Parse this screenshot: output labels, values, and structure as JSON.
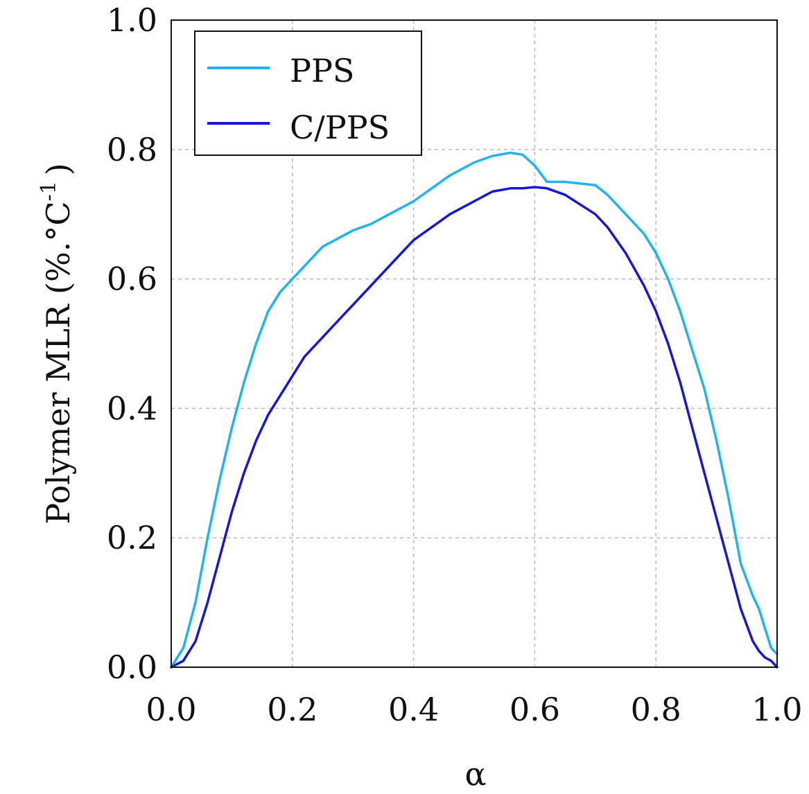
{
  "chart_data": {
    "type": "line",
    "xlabel": "α",
    "ylabel": "Polymer MLR (%.°C",
    "ylabel_superscript": "-1",
    "ylabel_close": ")",
    "xlim": [
      0.0,
      1.0
    ],
    "ylim": [
      0.0,
      1.0
    ],
    "xticks": [
      0.0,
      0.2,
      0.4,
      0.6,
      0.8,
      1.0
    ],
    "yticks": [
      0.0,
      0.2,
      0.4,
      0.6,
      0.8,
      1.0
    ],
    "xtick_labels": [
      "0.0",
      "0.2",
      "0.4",
      "0.6",
      "0.8",
      "1.0"
    ],
    "ytick_labels": [
      "0.0",
      "0.2",
      "0.4",
      "0.6",
      "0.8",
      "1.0"
    ],
    "grid": true,
    "legend_position": "top-left",
    "series": [
      {
        "name": "PPS",
        "color": "#1fb4ee",
        "x": [
          0.0,
          0.02,
          0.04,
          0.06,
          0.08,
          0.1,
          0.12,
          0.14,
          0.16,
          0.18,
          0.2,
          0.22,
          0.25,
          0.28,
          0.3,
          0.33,
          0.36,
          0.4,
          0.43,
          0.46,
          0.5,
          0.53,
          0.56,
          0.58,
          0.6,
          0.62,
          0.65,
          0.7,
          0.72,
          0.75,
          0.78,
          0.8,
          0.82,
          0.84,
          0.86,
          0.88,
          0.9,
          0.92,
          0.94,
          0.96,
          0.97,
          0.98,
          0.99,
          1.0
        ],
        "values": [
          0.0,
          0.03,
          0.1,
          0.2,
          0.29,
          0.37,
          0.44,
          0.5,
          0.55,
          0.58,
          0.6,
          0.62,
          0.65,
          0.665,
          0.675,
          0.685,
          0.7,
          0.72,
          0.74,
          0.76,
          0.78,
          0.79,
          0.795,
          0.792,
          0.775,
          0.75,
          0.75,
          0.745,
          0.73,
          0.7,
          0.67,
          0.64,
          0.6,
          0.55,
          0.49,
          0.43,
          0.35,
          0.26,
          0.16,
          0.11,
          0.09,
          0.06,
          0.03,
          0.02
        ]
      },
      {
        "name": "C/PPS",
        "color": "#1616d6",
        "x": [
          0.0,
          0.02,
          0.04,
          0.06,
          0.08,
          0.1,
          0.12,
          0.14,
          0.16,
          0.18,
          0.2,
          0.22,
          0.25,
          0.28,
          0.3,
          0.33,
          0.36,
          0.4,
          0.43,
          0.46,
          0.5,
          0.53,
          0.56,
          0.58,
          0.6,
          0.62,
          0.65,
          0.7,
          0.72,
          0.75,
          0.78,
          0.8,
          0.82,
          0.84,
          0.86,
          0.88,
          0.9,
          0.92,
          0.94,
          0.96,
          0.97,
          0.98,
          0.99,
          1.0
        ],
        "values": [
          0.0,
          0.01,
          0.04,
          0.1,
          0.17,
          0.24,
          0.3,
          0.35,
          0.39,
          0.42,
          0.45,
          0.48,
          0.51,
          0.54,
          0.56,
          0.59,
          0.62,
          0.66,
          0.68,
          0.7,
          0.72,
          0.735,
          0.74,
          0.74,
          0.742,
          0.74,
          0.73,
          0.7,
          0.68,
          0.64,
          0.59,
          0.55,
          0.5,
          0.44,
          0.37,
          0.3,
          0.23,
          0.16,
          0.09,
          0.04,
          0.025,
          0.015,
          0.01,
          0.0
        ]
      }
    ]
  }
}
